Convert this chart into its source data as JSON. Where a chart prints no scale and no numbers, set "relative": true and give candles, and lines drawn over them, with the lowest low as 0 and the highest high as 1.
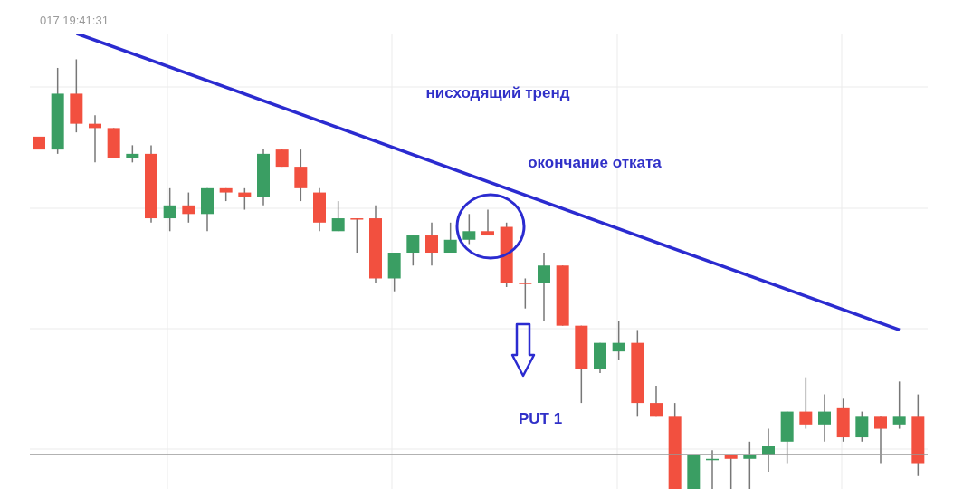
{
  "chart_data": {
    "type": "candlestick",
    "relative": true,
    "grid": true,
    "categories": [
      null,
      null,
      null,
      null,
      null,
      null,
      null,
      null,
      null,
      null,
      null,
      null,
      null,
      null,
      null,
      null,
      null,
      null,
      null,
      null,
      null,
      null,
      null,
      null,
      null,
      null,
      null,
      null,
      null,
      null,
      null,
      null,
      null,
      null,
      null,
      null,
      null,
      null,
      null,
      null,
      null,
      null,
      null,
      null,
      null,
      null,
      null,
      null
    ],
    "ohlc": [
      [
        0.82,
        0.82,
        0.79,
        0.79
      ],
      [
        0.79,
        0.98,
        0.78,
        0.92
      ],
      [
        0.92,
        1.0,
        0.83,
        0.85
      ],
      [
        0.85,
        0.87,
        0.76,
        0.84
      ],
      [
        0.84,
        0.84,
        0.77,
        0.77
      ],
      [
        0.77,
        0.8,
        0.76,
        0.78
      ],
      [
        0.78,
        0.8,
        0.62,
        0.63
      ],
      [
        0.63,
        0.7,
        0.6,
        0.66
      ],
      [
        0.66,
        0.69,
        0.62,
        0.64
      ],
      [
        0.64,
        0.7,
        0.6,
        0.7
      ],
      [
        0.7,
        0.7,
        0.67,
        0.69
      ],
      [
        0.69,
        0.7,
        0.65,
        0.68
      ],
      [
        0.68,
        0.79,
        0.66,
        0.78
      ],
      [
        0.79,
        0.79,
        0.75,
        0.75
      ],
      [
        0.75,
        0.79,
        0.67,
        0.7
      ],
      [
        0.69,
        0.7,
        0.6,
        0.62
      ],
      [
        0.6,
        0.67,
        0.6,
        0.63
      ],
      [
        0.63,
        0.63,
        0.55,
        0.63
      ],
      [
        0.63,
        0.66,
        0.48,
        0.49
      ],
      [
        0.49,
        0.55,
        0.46,
        0.55
      ],
      [
        0.55,
        0.59,
        0.52,
        0.59
      ],
      [
        0.59,
        0.62,
        0.52,
        0.55
      ],
      [
        0.55,
        0.62,
        0.55,
        0.58
      ],
      [
        0.58,
        0.64,
        0.57,
        0.6
      ],
      [
        0.6,
        0.65,
        0.59,
        0.59
      ],
      [
        0.61,
        0.62,
        0.47,
        0.48
      ],
      [
        0.48,
        0.49,
        0.42,
        0.48
      ],
      [
        0.48,
        0.55,
        0.39,
        0.52
      ],
      [
        0.52,
        0.52,
        0.38,
        0.38
      ],
      [
        0.38,
        0.38,
        0.2,
        0.28
      ],
      [
        0.28,
        0.34,
        0.27,
        0.34
      ],
      [
        0.32,
        0.39,
        0.3,
        0.34
      ],
      [
        0.34,
        0.37,
        0.17,
        0.2
      ],
      [
        0.2,
        0.24,
        0.17,
        0.17
      ],
      [
        0.17,
        0.2,
        0,
        0
      ],
      [
        0,
        0.08,
        0,
        0.08
      ],
      [
        0.07,
        0.09,
        0,
        0.07
      ],
      [
        0.08,
        0.08,
        0,
        0.07
      ],
      [
        0.07,
        0.11,
        0,
        0.08
      ],
      [
        0.08,
        0.14,
        0.04,
        0.1
      ],
      [
        0.11,
        0.18,
        0.06,
        0.18
      ],
      [
        0.18,
        0.26,
        0.14,
        0.15
      ],
      [
        0.15,
        0.22,
        0.11,
        0.18
      ],
      [
        0.19,
        0.21,
        0.11,
        0.12
      ],
      [
        0.12,
        0.18,
        0.11,
        0.17
      ],
      [
        0.17,
        0.17,
        0.06,
        0.14
      ],
      [
        0.15,
        0.25,
        0.14,
        0.17
      ],
      [
        0.17,
        0.22,
        0.03,
        0.06
      ]
    ],
    "colors": [
      "#f2503f",
      "#3a9e63",
      "#f2503f",
      "#f2503f",
      "#f2503f",
      "#3a9e63",
      "#f2503f",
      "#3a9e63",
      "#f2503f",
      "#3a9e63",
      "#f2503f",
      "#f2503f",
      "#3a9e63",
      "#f2503f",
      "#f2503f",
      "#f2503f",
      "#3a9e63",
      "#f2503f",
      "#f2503f",
      "#3a9e63",
      "#3a9e63",
      "#f2503f",
      "#3a9e63",
      "#3a9e63",
      "#f2503f",
      "#f2503f",
      "#f2503f",
      "#3a9e63",
      "#f2503f",
      "#f2503f",
      "#3a9e63",
      "#3a9e63",
      "#f2503f",
      "#f2503f",
      "#f2503f",
      "#3a9e63",
      "#3a9e63",
      "#f2503f",
      "#3a9e63",
      "#3a9e63",
      "#3a9e63",
      "#f2503f",
      "#3a9e63",
      "#f2503f",
      "#3a9e63",
      "#f2503f",
      "#3a9e63",
      "#f2503f"
    ],
    "series": [
      {
        "type": "line",
        "color": "#2b2bd0",
        "values": [
          null,
          null,
          1.06,
          null,
          null,
          null,
          null,
          null,
          null,
          null,
          null,
          null,
          null,
          null,
          null,
          null,
          null,
          null,
          null,
          null,
          null,
          null,
          null,
          null,
          null,
          null,
          null,
          null,
          null,
          null,
          null,
          null,
          null,
          null,
          null,
          null,
          null,
          null,
          null,
          null,
          null,
          null,
          null,
          null,
          null,
          null,
          0.37,
          null
        ]
      }
    ],
    "ref_lines": [
      {
        "axis": "y",
        "value": 0.08,
        "color": "#999999"
      }
    ],
    "annotations": [
      "017 19:41:31",
      "нисходящий тренд",
      "окончание отката",
      "PUT 1"
    ]
  }
}
